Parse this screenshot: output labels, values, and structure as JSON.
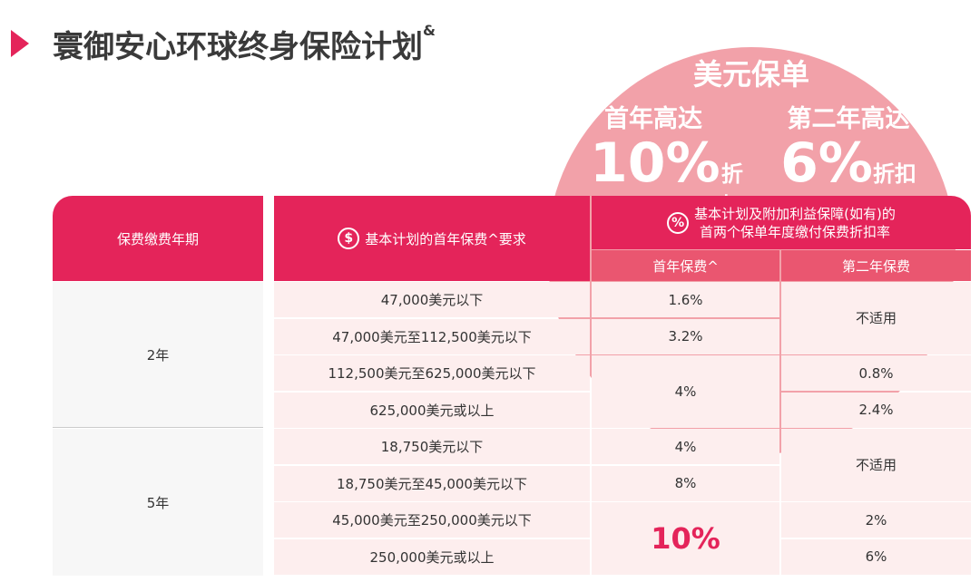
{
  "title": "寰御安心环球终身保险计划",
  "title_mark": "&",
  "banner": {
    "title": "美元保单",
    "offers": [
      {
        "label": "首年高达",
        "value": "10%",
        "unit": "折扣"
      },
      {
        "label": "第二年高达",
        "value": "6%",
        "unit": "折扣"
      }
    ]
  },
  "table": {
    "header": [
      {
        "text": "保费缴费年期"
      },
      {
        "icon": "$",
        "text": "基本计划的首年保费^要求"
      },
      {
        "icon": "%",
        "lines": [
          "基本计划及附加利益保障(如有)的",
          "首两个保单年度缴付保费折扣率"
        ]
      }
    ],
    "subheader": [
      "首年保费^",
      "第二年保费"
    ],
    "groups": [
      {
        "term": "2年",
        "amounts": [
          "47,000美元以下",
          "47,000美元至112,500美元以下",
          "112,500美元至625,000美元以下",
          "625,000美元或以上"
        ],
        "first_year": [
          "1.6%",
          "3.2%",
          "4%"
        ],
        "second_year": [
          "不适用",
          "0.8%",
          "2.4%"
        ]
      },
      {
        "term": "5年",
        "amounts": [
          "18,750美元以下",
          "18,750美元至45,000美元以下",
          "45,000美元至250,000美元以下",
          "250,000美元或以上"
        ],
        "first_year": [
          "4%",
          "8%",
          "10%"
        ],
        "second_year": [
          "不适用",
          "2%",
          "6%"
        ]
      }
    ]
  }
}
